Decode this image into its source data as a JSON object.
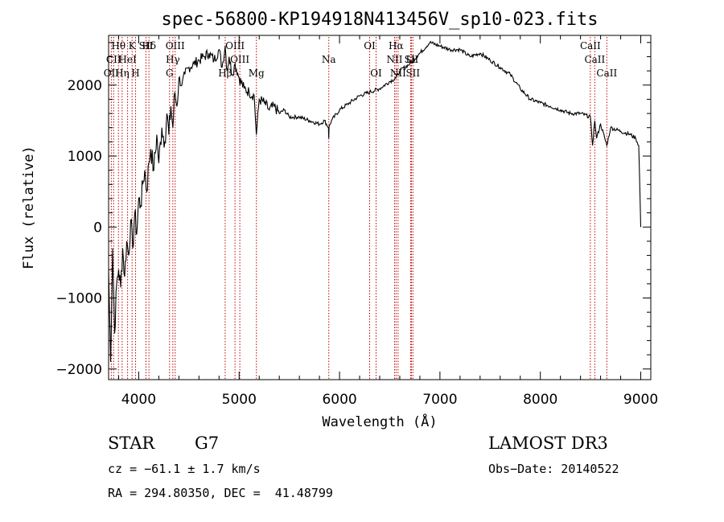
{
  "chart_data": {
    "type": "line",
    "title": "spec-56800-KP194918N413456V_sp10-023.fits",
    "xlabel": "Wavelength (Å)",
    "ylabel": "Flux (relative)",
    "xlim": [
      3700,
      9100
    ],
    "ylim": [
      -2150,
      2700
    ],
    "xticks": [
      4000,
      5000,
      6000,
      7000,
      8000,
      9000
    ],
    "xtick_labels": [
      "4000",
      "5000",
      "6000",
      "7000",
      "8000",
      "9000"
    ],
    "yticks": [
      -2000,
      -1000,
      0,
      1000,
      2000
    ],
    "ytick_labels": [
      "−2000",
      "−1000",
      "0",
      "1000",
      "2000"
    ],
    "series": [
      {
        "name": "spectrum",
        "x": [
          3700,
          3720,
          3740,
          3760,
          3780,
          3800,
          3820,
          3840,
          3860,
          3880,
          3900,
          3920,
          3940,
          3960,
          3980,
          4000,
          4020,
          4040,
          4060,
          4080,
          4100,
          4120,
          4150,
          4180,
          4200,
          4230,
          4260,
          4280,
          4300,
          4320,
          4340,
          4360,
          4380,
          4400,
          4430,
          4460,
          4500,
          4550,
          4600,
          4650,
          4700,
          4750,
          4800,
          4830,
          4861,
          4880,
          4900,
          4930,
          4960,
          5000,
          5050,
          5100,
          5150,
          5172,
          5200,
          5250,
          5300,
          5350,
          5400,
          5450,
          5500,
          5600,
          5700,
          5800,
          5850,
          5890,
          5893,
          5896,
          5920,
          6000,
          6100,
          6200,
          6300,
          6400,
          6500,
          6563,
          6600,
          6700,
          6800,
          6900,
          7000,
          7100,
          7200,
          7300,
          7400,
          7500,
          7600,
          7700,
          7800,
          7900,
          8000,
          8100,
          8200,
          8300,
          8400,
          8498,
          8520,
          8542,
          8560,
          8600,
          8662,
          8700,
          8800,
          8900,
          8950,
          8980,
          9000
        ],
        "y": [
          -600,
          -1900,
          -300,
          -1500,
          -800,
          -600,
          -850,
          -300,
          -700,
          -200,
          -400,
          100,
          -300,
          200,
          -100,
          400,
          300,
          600,
          800,
          500,
          900,
          1100,
          800,
          1300,
          900,
          1400,
          1200,
          1600,
          1300,
          1700,
          1400,
          1900,
          1700,
          2100,
          2000,
          2150,
          2250,
          2300,
          2350,
          2400,
          2450,
          2350,
          2500,
          2250,
          2550,
          2200,
          2400,
          2150,
          2300,
          2100,
          1950,
          1900,
          1850,
          1300,
          1800,
          1750,
          1650,
          1700,
          1600,
          1650,
          1550,
          1550,
          1500,
          1450,
          1500,
          1400,
          1250,
          1420,
          1500,
          1650,
          1750,
          1850,
          1900,
          1950,
          2050,
          2100,
          2200,
          2300,
          2450,
          2600,
          2550,
          2500,
          2500,
          2400,
          2450,
          2350,
          2250,
          2150,
          1950,
          1800,
          1750,
          1700,
          1650,
          1600,
          1600,
          1550,
          1150,
          1500,
          1250,
          1450,
          1150,
          1400,
          1350,
          1300,
          1250,
          1150,
          0
        ]
      }
    ],
    "lines": [
      {
        "wave": 3727,
        "labels": [
          "OII"
        ]
      },
      {
        "wave": 3750,
        "labels": [
          "CII"
        ]
      },
      {
        "wave": 3798,
        "labels": [
          "Hθ"
        ]
      },
      {
        "wave": 3835,
        "labels": [
          "Hη"
        ]
      },
      {
        "wave": 3889,
        "labels": [
          "HeI"
        ]
      },
      {
        "wave": 3934,
        "labels": [
          "K"
        ]
      },
      {
        "wave": 3968,
        "labels": [
          "H"
        ]
      },
      {
        "wave": 4072,
        "labels": [
          "SII"
        ]
      },
      {
        "wave": 4102,
        "labels": [
          "Hδ"
        ]
      },
      {
        "wave": 4307,
        "labels": [
          "G"
        ]
      },
      {
        "wave": 4340,
        "labels": [
          "Hγ"
        ]
      },
      {
        "wave": 4363,
        "labels": [
          "OIII"
        ]
      },
      {
        "wave": 4861,
        "labels": [
          "Hβ"
        ]
      },
      {
        "wave": 4959,
        "labels": [
          "OIII"
        ]
      },
      {
        "wave": 5007,
        "labels": [
          "OIII"
        ]
      },
      {
        "wave": 5172,
        "labels": [
          "Mg"
        ]
      },
      {
        "wave": 5893,
        "labels": [
          "Na"
        ]
      },
      {
        "wave": 6300,
        "labels": [
          "OI"
        ]
      },
      {
        "wave": 6364,
        "labels": [
          "OI"
        ]
      },
      {
        "wave": 6548,
        "labels": [
          "NII"
        ]
      },
      {
        "wave": 6563,
        "labels": [
          "Hα"
        ]
      },
      {
        "wave": 6583,
        "labels": [
          "NII"
        ]
      },
      {
        "wave": 6708,
        "labels": [
          "Li"
        ]
      },
      {
        "wave": 6716,
        "labels": [
          "SII"
        ]
      },
      {
        "wave": 6731,
        "labels": [
          "SII"
        ]
      },
      {
        "wave": 8498,
        "labels": [
          "CaII"
        ]
      },
      {
        "wave": 8542,
        "labels": [
          "CaII"
        ]
      },
      {
        "wave": 8662,
        "labels": [
          "CaII"
        ]
      }
    ],
    "label_rows": [
      [
        "Hθ",
        "K",
        "Hδ",
        "OIII",
        "OIII",
        "OI",
        "Hα",
        "SII",
        "CaII"
      ],
      [
        "CII",
        "HeI",
        "SII",
        "Hγ",
        "OIII",
        "Na",
        "NII",
        "Li",
        "CaII"
      ],
      [
        "OII",
        "Hη",
        "H",
        "G",
        "Hβ",
        "Mg",
        "OI",
        "NII",
        "SII",
        "CaII"
      ]
    ]
  },
  "info": {
    "object_class": "STAR",
    "subclass": "G7",
    "survey": "LAMOST DR3",
    "cz": "cz = −61.1 ± 1.7 km/s",
    "obs_date": "Obs−Date: 20140522",
    "coords": "RA = 294.80350, DEC =  41.48799"
  },
  "colors": {
    "line_marker": "#c00000",
    "spectrum": "#000000"
  }
}
